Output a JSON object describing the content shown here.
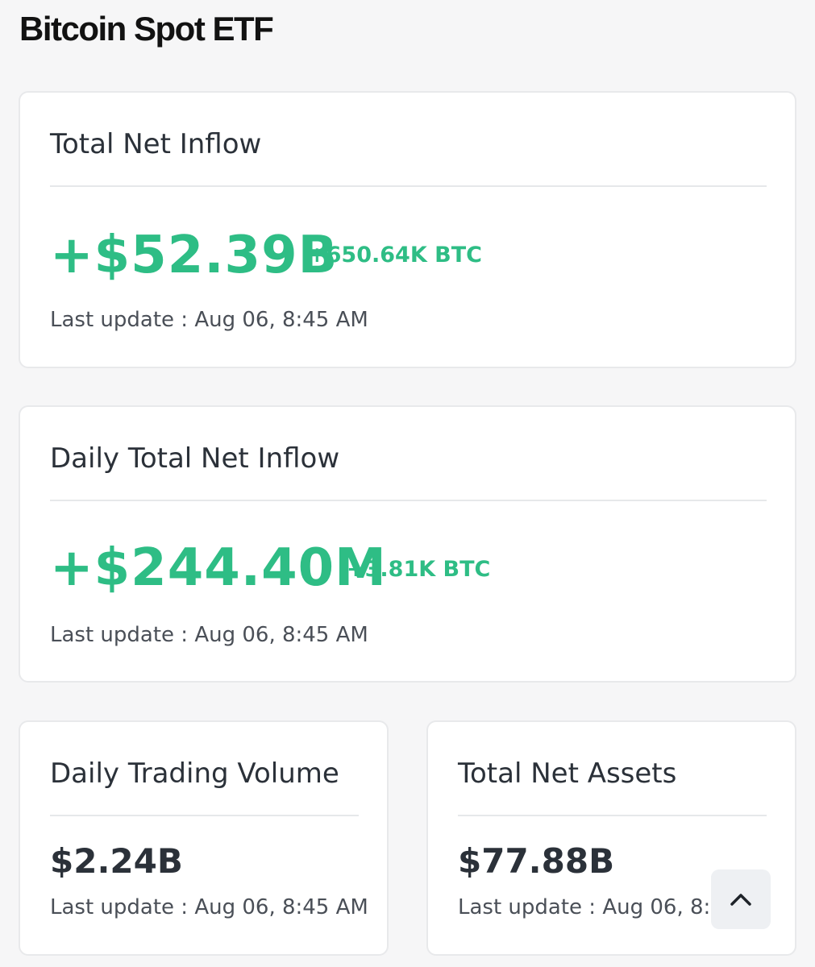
{
  "page": {
    "title": "Bitcoin Spot ETF"
  },
  "cards": {
    "total_net_inflow": {
      "title": "Total Net Inflow",
      "value": "+$52.39B",
      "btc": "+650.64K BTC",
      "last_update": "Last update : Aug 06, 8:45 AM"
    },
    "daily_total_net_inflow": {
      "title": "Daily Total Net Inflow",
      "value": "+$244.40M",
      "btc": "+3.81K BTC",
      "last_update": "Last update : Aug 06, 8:45 AM"
    },
    "daily_trading_volume": {
      "title": "Daily Trading Volume",
      "value": "$2.24B",
      "last_update": "Last update : Aug 06, 8:45 AM"
    },
    "total_net_assets": {
      "title": "Total Net Assets",
      "value": "$77.88B",
      "last_update": "Last update : Aug 06, 8:45"
    }
  },
  "scroll_top_button": {
    "icon": "chevron-up-icon"
  },
  "colors": {
    "positive": "#2ebd85",
    "text_primary": "#2b3139",
    "background": "#f6f6f7",
    "card_border": "#e8e9eb"
  }
}
